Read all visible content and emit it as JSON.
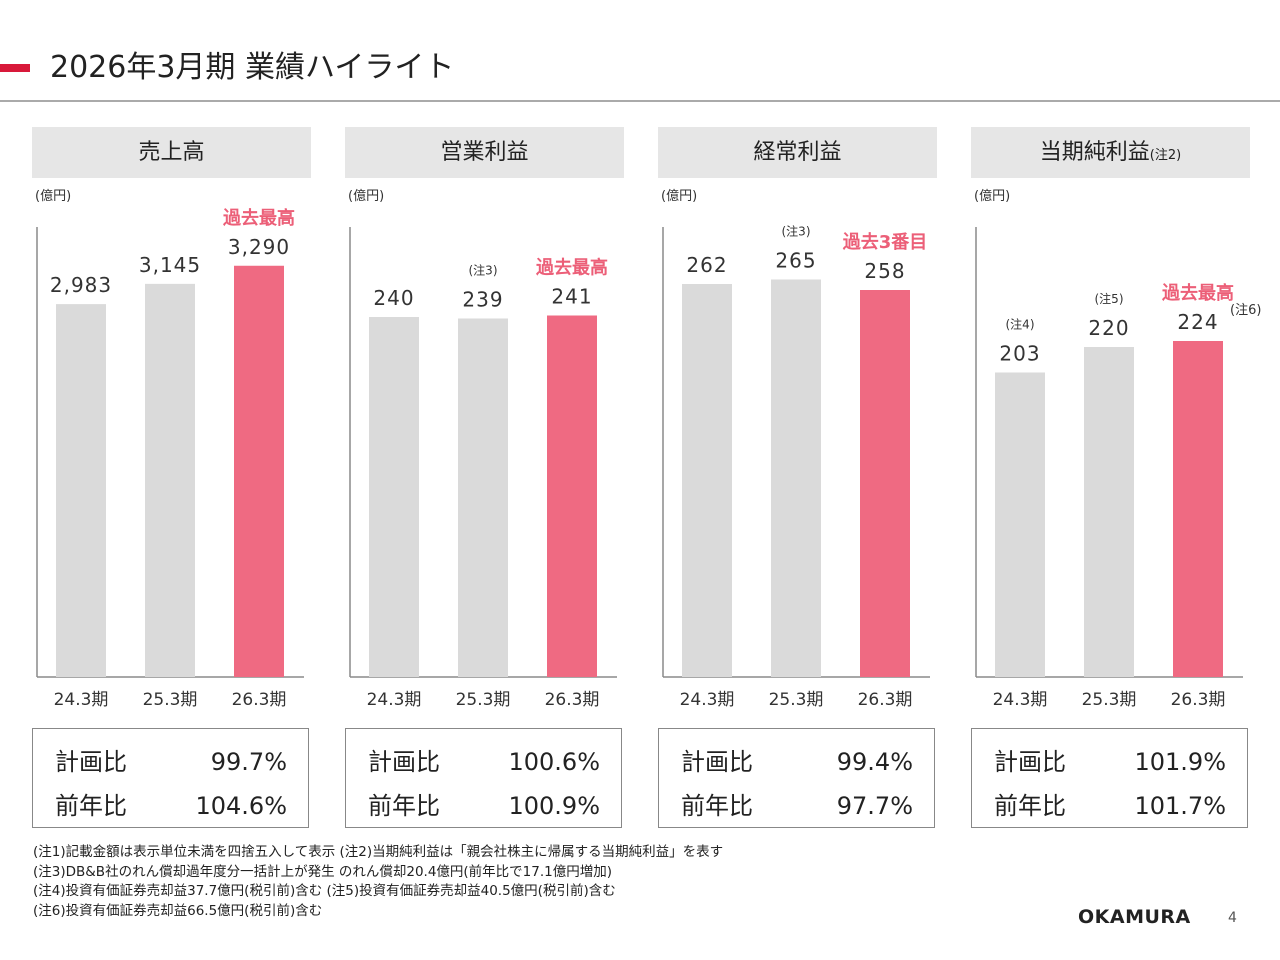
{
  "title": "2026年3月期 業績ハイライト",
  "colors": {
    "accent": "#d8193a",
    "highlight_bar": "#ef6a82",
    "highlight_text": "#ec5f78",
    "normal_bar": "#dadada",
    "axis": "#8a8a8a"
  },
  "chart_data": [
    {
      "type": "bar",
      "title": "売上高",
      "title_note": "",
      "unit": "(億円)",
      "categories": [
        "24.3期",
        "25.3期",
        "26.3期"
      ],
      "values": [
        2983,
        3145,
        3290
      ],
      "value_labels": [
        "2,983",
        "3,145",
        "3,290"
      ],
      "notes": [
        "",
        "",
        ""
      ],
      "suffix_notes": [
        "",
        "",
        ""
      ],
      "highlight_index": 2,
      "callout": "過去最高",
      "ylim": [
        0,
        3600
      ],
      "grid": false,
      "kpi": [
        {
          "label": "計画比",
          "value": "99.7%"
        },
        {
          "label": "前年比",
          "value": "104.6%"
        }
      ]
    },
    {
      "type": "bar",
      "title": "営業利益",
      "title_note": "",
      "unit": "(億円)",
      "categories": [
        "24.3期",
        "25.3期",
        "26.3期"
      ],
      "values": [
        240,
        239,
        241
      ],
      "value_labels": [
        "240",
        "239",
        "241"
      ],
      "notes": [
        "",
        "(注3)",
        ""
      ],
      "suffix_notes": [
        "",
        "",
        ""
      ],
      "highlight_index": 2,
      "callout": "過去最高",
      "ylim": [
        0,
        300
      ],
      "grid": false,
      "kpi": [
        {
          "label": "計画比",
          "value": "100.6%"
        },
        {
          "label": "前年比",
          "value": "100.9%"
        }
      ]
    },
    {
      "type": "bar",
      "title": "経常利益",
      "title_note": "",
      "unit": "(億円)",
      "categories": [
        "24.3期",
        "25.3期",
        "26.3期"
      ],
      "values": [
        262,
        265,
        258
      ],
      "value_labels": [
        "262",
        "265",
        "258"
      ],
      "notes": [
        "",
        "(注3)",
        ""
      ],
      "suffix_notes": [
        "",
        "",
        ""
      ],
      "highlight_index": 2,
      "callout": "過去3番目",
      "ylim": [
        0,
        300
      ],
      "grid": false,
      "kpi": [
        {
          "label": "計画比",
          "value": "99.4%"
        },
        {
          "label": "前年比",
          "value": "97.7%"
        }
      ]
    },
    {
      "type": "bar",
      "title": "当期純利益",
      "title_note": "(注2)",
      "unit": "(億円)",
      "categories": [
        "24.3期",
        "25.3期",
        "26.3期"
      ],
      "values": [
        203,
        220,
        224
      ],
      "value_labels": [
        "203",
        "220",
        "224"
      ],
      "notes": [
        "(注4)",
        "(注5)",
        ""
      ],
      "suffix_notes": [
        "",
        "",
        "(注6)"
      ],
      "highlight_index": 2,
      "callout": "過去最高",
      "ylim": [
        0,
        300
      ],
      "grid": false,
      "kpi": [
        {
          "label": "計画比",
          "value": "101.9%"
        },
        {
          "label": "前年比",
          "value": "101.7%"
        }
      ]
    }
  ],
  "footnotes": [
    "(注1)記載金額は表示単位未満を四捨五入して表示 (注2)当期純利益は「親会社株主に帰属する当期純利益」を表す",
    "(注3)DB&B社のれん償却過年度分一括計上が発生 のれん償却20.4億円(前年比で17.1億円増加)",
    "(注4)投資有価証券売却益37.7億円(税引前)含む (注5)投資有価証券売却益40.5億円(税引前)含む",
    "(注6)投資有価証券売却益66.5億円(税引前)含む"
  ],
  "logo_text": "OKAMURA",
  "page_number": "4"
}
